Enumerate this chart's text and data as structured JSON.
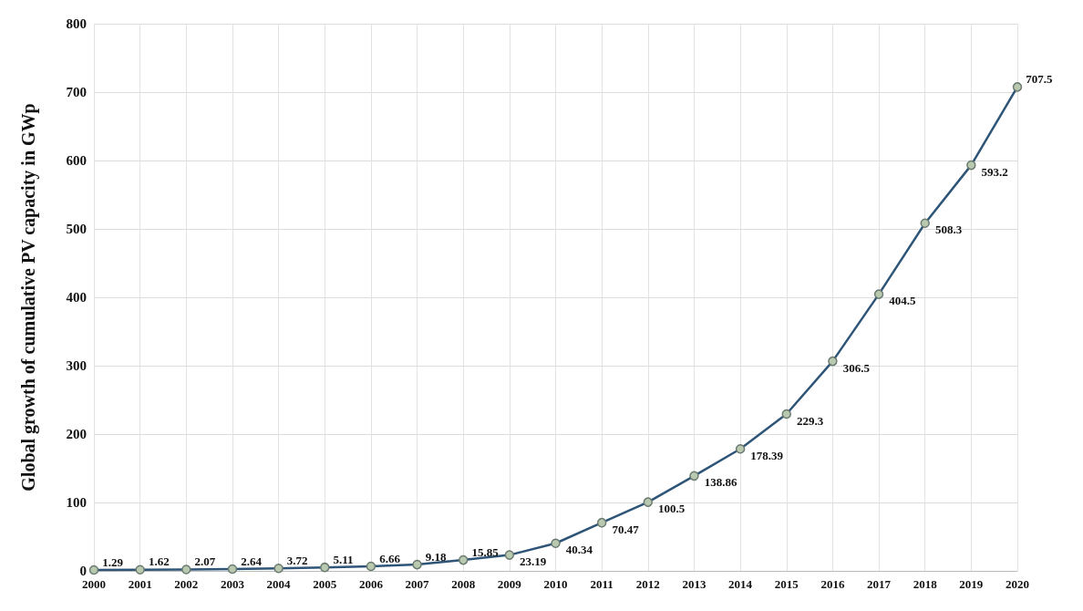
{
  "chart_data": {
    "type": "line",
    "ylabel": "Global growth of cumulative PV capacity in GWp",
    "categories": [
      "2000",
      "2001",
      "2002",
      "2003",
      "2004",
      "2005",
      "2006",
      "2007",
      "2008",
      "2009",
      "2010",
      "2011",
      "2012",
      "2013",
      "2014",
      "2015",
      "2016",
      "2017",
      "2018",
      "2019",
      "2020"
    ],
    "series": [
      {
        "color": "#2e5577",
        "values": [
          1.29,
          1.62,
          2.07,
          2.64,
          3.72,
          5.11,
          6.66,
          9.18,
          15.85,
          23.19,
          40.34,
          70.47,
          100.5,
          138.86,
          178.39,
          229.3,
          306.5,
          404.5,
          508.3,
          593.2,
          707.5
        ]
      }
    ],
    "ylim": [
      0,
      800
    ],
    "yticks": [
      0,
      100,
      200,
      300,
      400,
      500,
      600,
      700,
      800
    ],
    "grid": true,
    "marker": "circle",
    "line_style": "solid",
    "data_labels": true
  }
}
